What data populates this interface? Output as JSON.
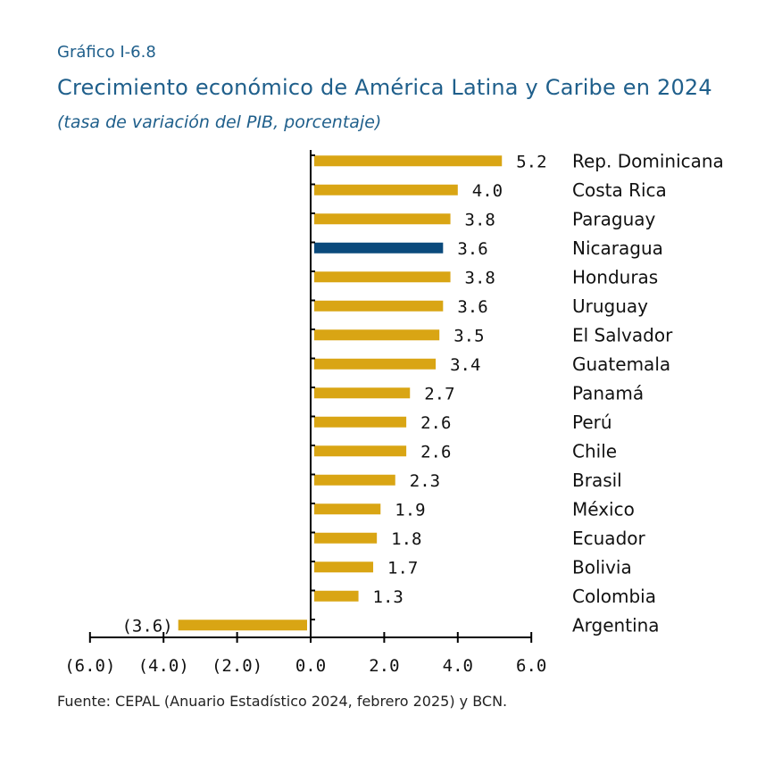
{
  "header": {
    "kicker": "Gráfico I-6.8",
    "title": "Crecimiento económico de América Latina y Caribe en 2024",
    "subtitle": "(tasa de variación del PIB, porcentaje)"
  },
  "footer": {
    "source": "Fuente: CEPAL (Anuario Estadístico 2024, febrero 2025) y BCN."
  },
  "chart_data": {
    "type": "bar",
    "orientation": "horizontal",
    "title": "Crecimiento económico de América Latina y Caribe en 2024",
    "categories": [
      "Rep. Dominicana",
      "Costa Rica",
      "Paraguay",
      "Nicaragua",
      "Honduras",
      "Uruguay",
      "El Salvador",
      "Guatemala",
      "Panamá",
      "Perú",
      "Chile",
      "Brasil",
      "México",
      "Ecuador",
      "Bolivia",
      "Colombia",
      "Argentina"
    ],
    "values": [
      5.2,
      4.0,
      3.8,
      3.6,
      3.8,
      3.6,
      3.5,
      3.4,
      2.7,
      2.6,
      2.6,
      2.3,
      1.9,
      1.8,
      1.7,
      1.3,
      -3.6
    ],
    "value_labels": [
      "5.2",
      "4.0",
      "3.8",
      "3.6",
      "3.8",
      "3.6",
      "3.5",
      "3.4",
      "2.7",
      "2.6",
      "2.6",
      "2.3",
      "1.9",
      "1.8",
      "1.7",
      "1.3",
      "(3.6)"
    ],
    "xlim": [
      -6.0,
      6.0
    ],
    "xticks": [
      -6,
      -4,
      -2,
      0,
      2,
      4,
      6
    ],
    "xtick_labels": [
      "(6.0)",
      "(4.0)",
      "(2.0)",
      "0.0",
      "2.0",
      "4.0",
      "6.0"
    ],
    "highlight_category": "Nicaragua",
    "colors": {
      "default": "#d9a514",
      "highlight": "#0b4a7c",
      "axis": "#000000"
    },
    "grid": false,
    "legend": "none"
  }
}
